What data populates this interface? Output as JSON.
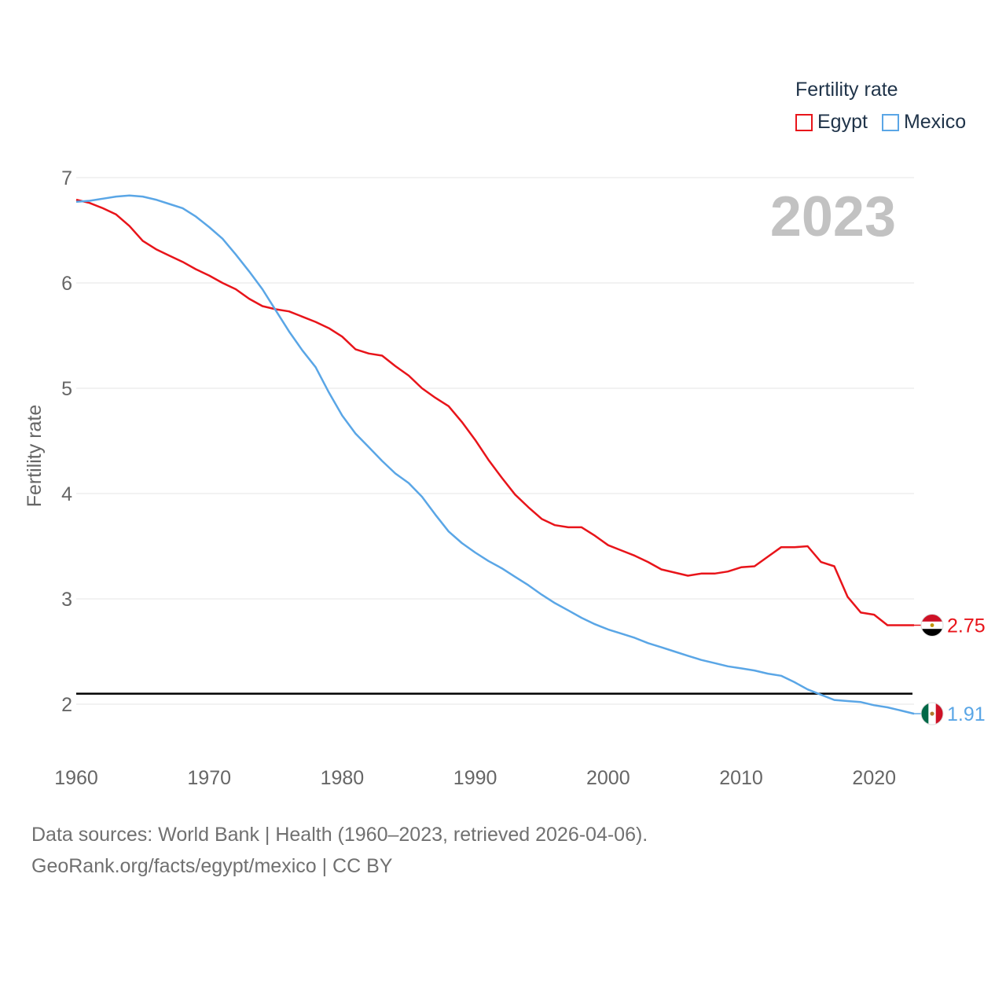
{
  "legend": {
    "title": "Fertility rate",
    "items": [
      {
        "label": "Egypt",
        "color": "#e8141a"
      },
      {
        "label": "Mexico",
        "color": "#5aa6e6"
      }
    ]
  },
  "year_label": "2023",
  "footer": {
    "line1": "Data sources: World Bank | Health (1960–2023, retrieved 2026-04-06).",
    "line2": "GeoRank.org/facts/egypt/mexico | CC BY"
  },
  "chart_data": {
    "type": "line",
    "title": "",
    "xlabel": "",
    "ylabel": "Fertility rate",
    "xlim": [
      1960,
      2023
    ],
    "ylim": [
      1.5,
      7
    ],
    "xticks": [
      1960,
      1970,
      1980,
      1990,
      2000,
      2010,
      2020
    ],
    "yticks": [
      2,
      3,
      4,
      5,
      6,
      7
    ],
    "reference_line": {
      "y": 2.1,
      "color": "#000000"
    },
    "x": [
      1960,
      1961,
      1962,
      1963,
      1964,
      1965,
      1966,
      1967,
      1968,
      1969,
      1970,
      1971,
      1972,
      1973,
      1974,
      1975,
      1976,
      1977,
      1978,
      1979,
      1980,
      1981,
      1982,
      1983,
      1984,
      1985,
      1986,
      1987,
      1988,
      1989,
      1990,
      1991,
      1992,
      1993,
      1994,
      1995,
      1996,
      1997,
      1998,
      1999,
      2000,
      2001,
      2002,
      2003,
      2004,
      2005,
      2006,
      2007,
      2008,
      2009,
      2010,
      2011,
      2012,
      2013,
      2014,
      2015,
      2016,
      2017,
      2018,
      2019,
      2020,
      2021,
      2022,
      2023
    ],
    "series": [
      {
        "name": "Egypt",
        "color": "#e8141a",
        "end_label": "2.75",
        "values": [
          6.79,
          6.76,
          6.71,
          6.65,
          6.54,
          6.4,
          6.32,
          6.26,
          6.2,
          6.13,
          6.07,
          6.0,
          5.94,
          5.85,
          5.78,
          5.75,
          5.73,
          5.68,
          5.63,
          5.57,
          5.49,
          5.37,
          5.33,
          5.31,
          5.21,
          5.12,
          5.0,
          4.91,
          4.83,
          4.68,
          4.51,
          4.32,
          4.15,
          3.99,
          3.87,
          3.76,
          3.7,
          3.68,
          3.68,
          3.6,
          3.51,
          3.46,
          3.41,
          3.35,
          3.28,
          3.25,
          3.22,
          3.24,
          3.24,
          3.26,
          3.3,
          3.31,
          3.4,
          3.49,
          3.49,
          3.5,
          3.35,
          3.31,
          3.02,
          2.87,
          2.85,
          2.75,
          2.75,
          2.75
        ]
      },
      {
        "name": "Mexico",
        "color": "#5aa6e6",
        "end_label": "1.91",
        "values": [
          6.77,
          6.78,
          6.8,
          6.82,
          6.83,
          6.82,
          6.79,
          6.75,
          6.71,
          6.63,
          6.53,
          6.42,
          6.27,
          6.11,
          5.94,
          5.74,
          5.54,
          5.36,
          5.2,
          4.96,
          4.74,
          4.57,
          4.44,
          4.31,
          4.19,
          4.1,
          3.97,
          3.8,
          3.64,
          3.53,
          3.44,
          3.36,
          3.29,
          3.21,
          3.13,
          3.04,
          2.96,
          2.89,
          2.82,
          2.76,
          2.71,
          2.67,
          2.63,
          2.58,
          2.54,
          2.5,
          2.46,
          2.42,
          2.39,
          2.36,
          2.34,
          2.32,
          2.29,
          2.27,
          2.21,
          2.14,
          2.09,
          2.04,
          2.03,
          2.02,
          1.99,
          1.97,
          1.94,
          1.91
        ]
      }
    ]
  }
}
